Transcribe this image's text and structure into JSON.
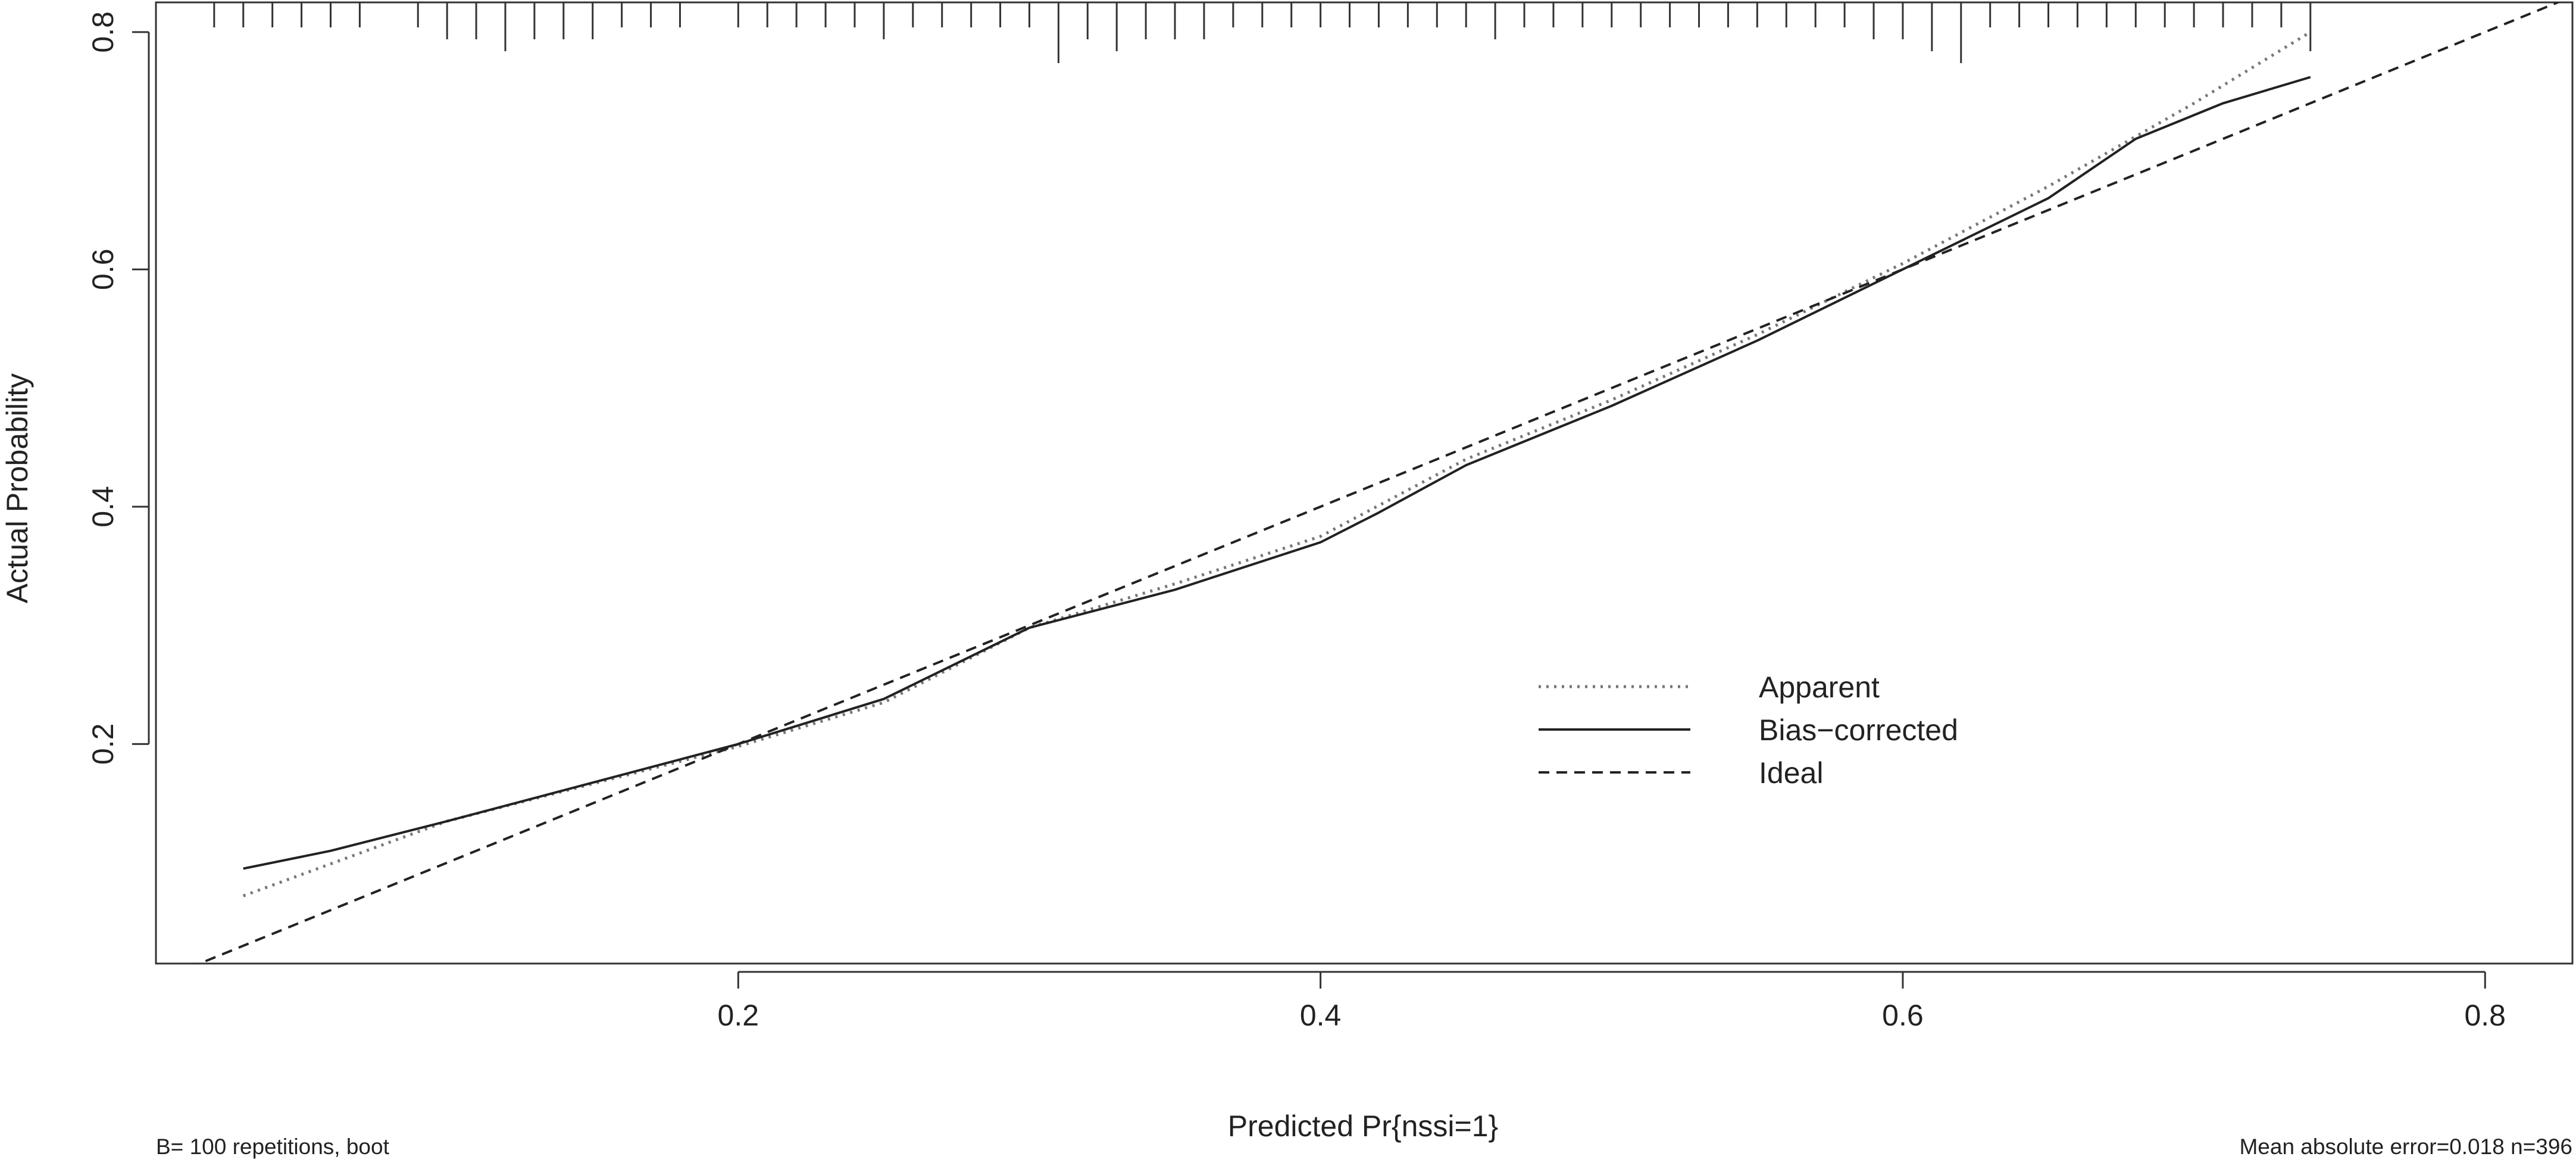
{
  "chart_data": {
    "type": "line",
    "title": "",
    "xlabel": "Predicted Pr{nssi=1}",
    "ylabel": "Actual Probability",
    "xlim": [
      0.0,
      0.83
    ],
    "ylim": [
      0.015,
      0.825
    ],
    "x_ticks": [
      0.2,
      0.4,
      0.6,
      0.8
    ],
    "x_tick_labels": [
      "0.2",
      "0.4",
      "0.6",
      "0.8"
    ],
    "y_ticks": [
      0.2,
      0.4,
      0.6,
      0.8
    ],
    "y_tick_labels": [
      "0.2",
      "0.4",
      "0.6",
      "0.8"
    ],
    "grid": false,
    "legend_position": "right-center",
    "series": [
      {
        "name": "Apparent",
        "style": "dotted",
        "color": "#777777",
        "x": [
          0.03,
          0.1,
          0.2,
          0.25,
          0.3,
          0.35,
          0.4,
          0.45,
          0.5,
          0.55,
          0.6,
          0.65,
          0.7,
          0.74
        ],
        "y": [
          0.072,
          0.135,
          0.198,
          0.235,
          0.298,
          0.335,
          0.375,
          0.44,
          0.49,
          0.545,
          0.605,
          0.67,
          0.74,
          0.8
        ]
      },
      {
        "name": "Bias-corrected",
        "style": "solid",
        "color": "#222222",
        "x": [
          0.03,
          0.06,
          0.1,
          0.2,
          0.25,
          0.3,
          0.35,
          0.4,
          0.42,
          0.45,
          0.5,
          0.55,
          0.6,
          0.65,
          0.68,
          0.71,
          0.74
        ],
        "y": [
          0.095,
          0.11,
          0.135,
          0.2,
          0.238,
          0.298,
          0.33,
          0.37,
          0.395,
          0.435,
          0.485,
          0.54,
          0.6,
          0.66,
          0.71,
          0.74,
          0.762
        ]
      },
      {
        "name": "Ideal",
        "style": "dashed",
        "color": "#222222",
        "x": [
          0.0,
          0.83
        ],
        "y": [
          0.0,
          0.83
        ]
      }
    ],
    "rug_x": [
      0.0,
      0.02,
      0.03,
      0.04,
      0.05,
      0.06,
      0.07,
      0.09,
      0.1,
      0.11,
      0.12,
      0.13,
      0.14,
      0.15,
      0.16,
      0.17,
      0.18,
      0.2,
      0.21,
      0.22,
      0.23,
      0.24,
      0.25,
      0.26,
      0.27,
      0.28,
      0.29,
      0.3,
      0.31,
      0.32,
      0.33,
      0.34,
      0.35,
      0.36,
      0.37,
      0.38,
      0.39,
      0.4,
      0.41,
      0.42,
      0.43,
      0.44,
      0.45,
      0.46,
      0.47,
      0.48,
      0.49,
      0.5,
      0.51,
      0.52,
      0.53,
      0.54,
      0.55,
      0.56,
      0.57,
      0.58,
      0.59,
      0.6,
      0.61,
      0.62,
      0.63,
      0.64,
      0.65,
      0.66,
      0.67,
      0.68,
      0.69,
      0.7,
      0.71,
      0.72,
      0.73,
      0.74
    ],
    "rug_counts": [
      1,
      1,
      1,
      1,
      1,
      1,
      1,
      1,
      2,
      2,
      3,
      2,
      2,
      2,
      1,
      1,
      1,
      1,
      1,
      1,
      1,
      1,
      2,
      1,
      1,
      1,
      1,
      1,
      4,
      2,
      3,
      2,
      2,
      2,
      1,
      1,
      1,
      1,
      1,
      1,
      1,
      1,
      1,
      2,
      1,
      1,
      1,
      1,
      1,
      1,
      1,
      1,
      1,
      1,
      1,
      1,
      2,
      2,
      3,
      4,
      1,
      1,
      1,
      1,
      1,
      1,
      1,
      1,
      1,
      1,
      1,
      3
    ]
  },
  "legend": {
    "items": [
      {
        "label": "Apparent",
        "style": "dotted",
        "color": "#777777"
      },
      {
        "label": "Bias−corrected",
        "style": "solid",
        "color": "#222222"
      },
      {
        "label": "Ideal",
        "style": "dashed",
        "color": "#222222"
      }
    ]
  },
  "footer": {
    "left": "B= 100 repetitions, boot",
    "right": "Mean absolute error=0.018 n=396"
  }
}
